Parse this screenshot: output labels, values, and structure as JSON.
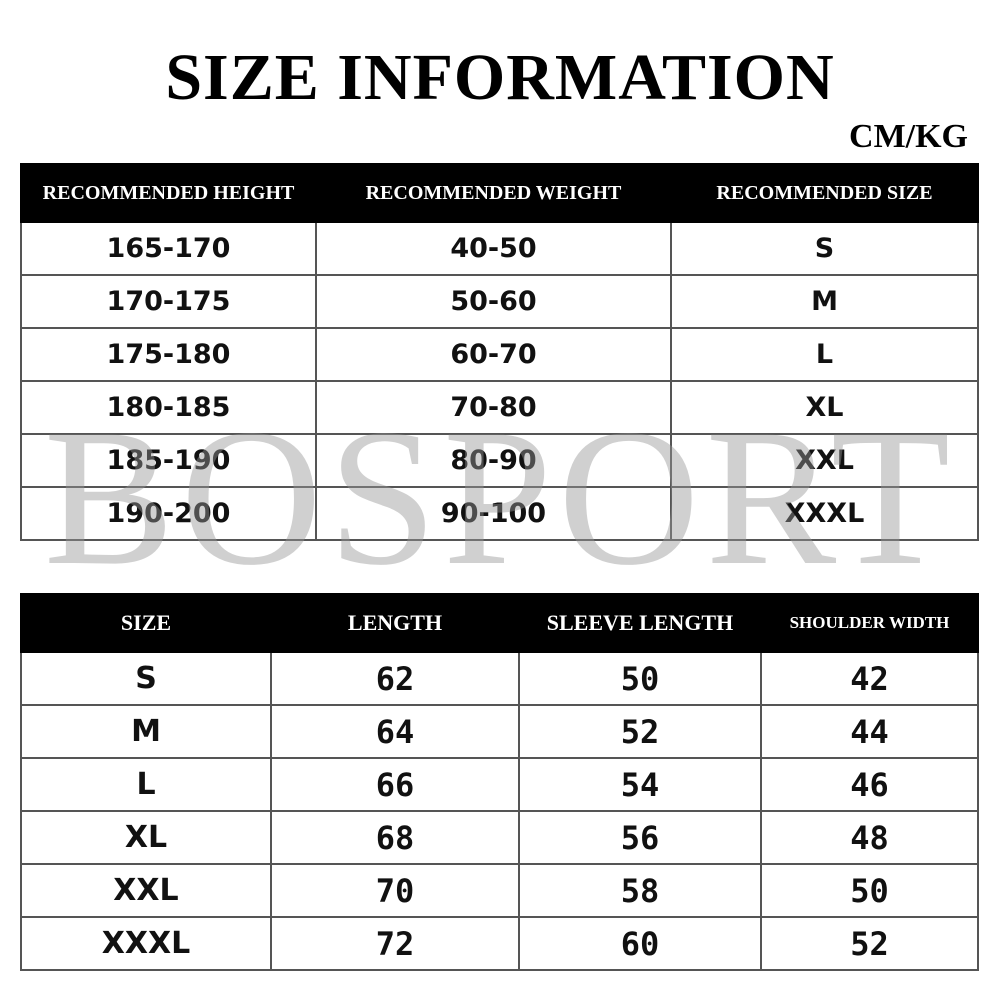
{
  "title": "SIZE INFORMATION",
  "unit": "CM/KG",
  "watermark": "BOSPORT",
  "recommend_table": {
    "headers": [
      "RECOMMENDED HEIGHT",
      "RECOMMENDED WEIGHT",
      "RECOMMENDED SIZE"
    ],
    "rows": [
      [
        "165-170",
        "40-50",
        "S"
      ],
      [
        "170-175",
        "50-60",
        "M"
      ],
      [
        "175-180",
        "60-70",
        "L"
      ],
      [
        "180-185",
        "70-80",
        "XL"
      ],
      [
        "185-190",
        "80-90",
        "XXL"
      ],
      [
        "190-200",
        "90-100",
        "XXXL"
      ]
    ]
  },
  "measure_table": {
    "headers": [
      "SIZE",
      "LENGTH",
      "SLEEVE LENGTH",
      "SHOULDER WIDTH"
    ],
    "rows": [
      [
        "S",
        "62",
        "50",
        "42"
      ],
      [
        "M",
        "64",
        "52",
        "44"
      ],
      [
        "L",
        "66",
        "54",
        "46"
      ],
      [
        "XL",
        "68",
        "56",
        "48"
      ],
      [
        "XXL",
        "70",
        "58",
        "50"
      ],
      [
        "XXXL",
        "72",
        "60",
        "52"
      ]
    ]
  }
}
